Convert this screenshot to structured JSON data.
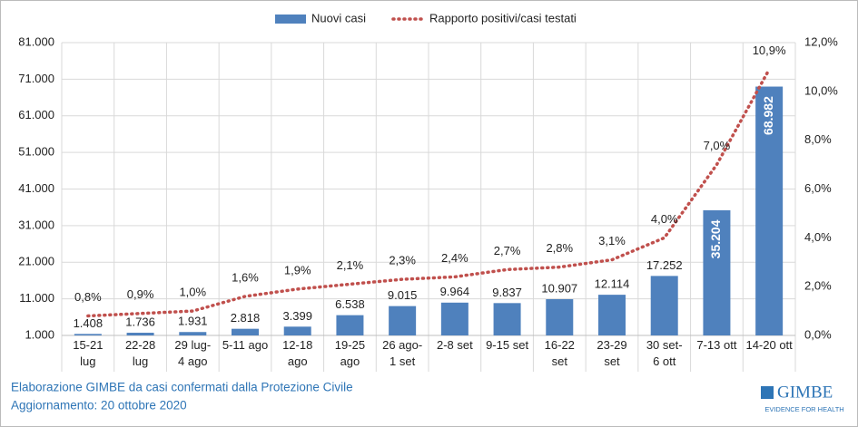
{
  "chart_data": {
    "type": "bar",
    "categories": [
      "15-21\nlug",
      "22-28\nlug",
      "29 lug-\n4 ago",
      "5-11 ago",
      "12-18\nago",
      "19-25\nago",
      "26 ago-\n1 set",
      "2-8 set",
      "9-15 set",
      "16-22\nset",
      "23-29\nset",
      "30 set-\n6 ott",
      "7-13 ott",
      "14-20 ott"
    ],
    "series": [
      {
        "name": "Nuovi casi",
        "type": "bar",
        "color": "#4f81bd",
        "values": [
          1408,
          1736,
          1931,
          2818,
          3399,
          6538,
          9015,
          9964,
          9837,
          10907,
          12114,
          17252,
          35204,
          68982
        ],
        "value_labels": [
          "1.408",
          "1.736",
          "1.931",
          "2.818",
          "3.399",
          "6.538",
          "9.015",
          "9.964",
          "9.837",
          "10.907",
          "12.114",
          "17.252",
          "35.204",
          "68.982"
        ]
      },
      {
        "name": "Rapporto positivi/casi testati",
        "type": "line",
        "axis": "y2",
        "color": "#c0504d",
        "values": [
          0.8,
          0.9,
          1.0,
          1.6,
          1.9,
          2.1,
          2.3,
          2.4,
          2.7,
          2.8,
          3.1,
          4.0,
          7.0,
          10.9
        ],
        "value_labels": [
          "0,8%",
          "0,9%",
          "1,0%",
          "1,6%",
          "1,9%",
          "2,1%",
          "2,3%",
          "2,4%",
          "2,7%",
          "2,8%",
          "3,1%",
          "4,0%",
          "7,0%",
          "10,9%"
        ]
      }
    ],
    "ylim": [
      1000,
      81000
    ],
    "yticks": [
      {
        "value": 1000,
        "label": "1.000"
      },
      {
        "value": 11000,
        "label": "11.000"
      },
      {
        "value": 21000,
        "label": "21.000"
      },
      {
        "value": 31000,
        "label": "31.000"
      },
      {
        "value": 41000,
        "label": "41.000"
      },
      {
        "value": 51000,
        "label": "51.000"
      },
      {
        "value": 61000,
        "label": "61.000"
      },
      {
        "value": 71000,
        "label": "71.000"
      },
      {
        "value": 81000,
        "label": "81.000"
      }
    ],
    "y2lim": [
      0,
      12
    ],
    "y2ticks": [
      {
        "value": 0,
        "label": "0,0%"
      },
      {
        "value": 2,
        "label": "2,0%"
      },
      {
        "value": 4,
        "label": "4,0%"
      },
      {
        "value": 6,
        "label": "6,0%"
      },
      {
        "value": 8,
        "label": "8,0%"
      },
      {
        "value": 10,
        "label": "10,0%"
      },
      {
        "value": 12,
        "label": "12,0%"
      }
    ],
    "grid": true,
    "legend": "top",
    "source": "Elaborazione GIMBE da casi confermati dalla Protezione Civile",
    "updated": "Aggiornamento: 20 ottobre 2020",
    "logo": "GIMBE",
    "logo_tagline": "EVIDENCE FOR HEALTH"
  }
}
